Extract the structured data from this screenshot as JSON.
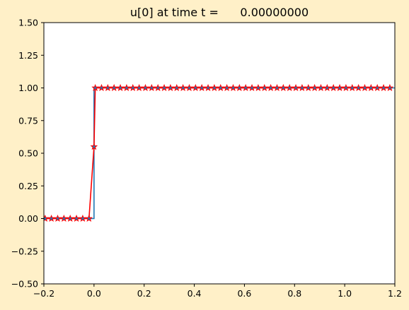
{
  "chart_data": {
    "type": "line",
    "title": "u[0] at time t =      0.00000000",
    "xlabel": "",
    "ylabel": "",
    "xlim": [
      -0.2,
      1.2
    ],
    "ylim": [
      -0.5,
      1.5
    ],
    "xticks": [
      -0.2,
      0.0,
      0.2,
      0.4,
      0.6,
      0.8,
      1.0,
      1.2
    ],
    "xtick_labels": [
      "−0.2",
      "0.0",
      "0.2",
      "0.4",
      "0.6",
      "0.8",
      "1.0",
      "1.2"
    ],
    "yticks": [
      -0.5,
      -0.25,
      0.0,
      0.25,
      0.5,
      0.75,
      1.0,
      1.25,
      1.5
    ],
    "ytick_labels": [
      "−0.50",
      "−0.25",
      "0.00",
      "0.25",
      "0.50",
      "0.75",
      "1.00",
      "1.25",
      "1.50"
    ],
    "grid": false,
    "legend": "none",
    "series": [
      {
        "style": "step",
        "color": "#1f77b4",
        "x": [
          -0.2,
          0.0,
          0.0,
          1.2
        ],
        "y": [
          0.0,
          0.0,
          1.0,
          1.0
        ]
      },
      {
        "style": "line-markers",
        "color": "#ff0000",
        "marker_color": "#1f77b4",
        "x_start": -0.195,
        "x_step": 0.025,
        "count": 56,
        "y_rule": "0 for x < 0, 0.55 at x = 0, 1 for x > 0"
      }
    ]
  }
}
